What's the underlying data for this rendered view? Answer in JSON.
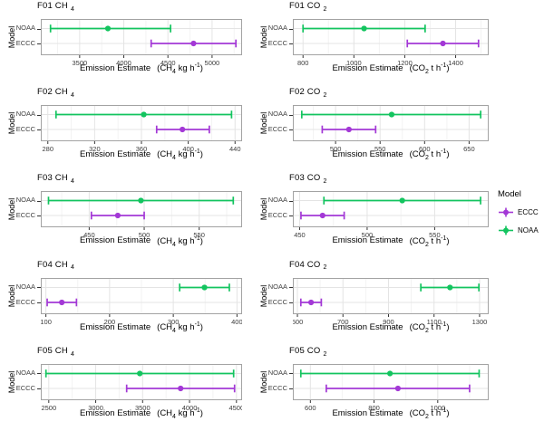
{
  "figure": {
    "background": "#ffffff"
  },
  "colors": {
    "eccc": "#a338d6",
    "noaa": "#13c45f",
    "grid_major": "#e4e4e4",
    "grid_minor": "#f3f3f3",
    "panel_border": "#a3a3a3",
    "tick": "#333333",
    "tick_label": "#3c3c3c"
  },
  "legend": {
    "title": "Model",
    "items": [
      {
        "label": "ECCC",
        "color_key": "eccc"
      },
      {
        "label": "NOAA",
        "color_key": "noaa"
      }
    ]
  },
  "chart_data": [
    {
      "id": "f01-ch4",
      "type": "pointrange",
      "title": "F01 CH",
      "title_sub": "4",
      "ylabel": "Model",
      "categories": [
        "NOAA",
        "ECCC"
      ],
      "xlabel": "Emission Estimate",
      "unit_pre": "(CH",
      "unit_sub": "4",
      "unit_mid": " kg h",
      "unit_sup": "-1",
      "unit_post": ")",
      "xlim": [
        3060,
        5340
      ],
      "ticks": [
        3500,
        4000,
        4500,
        5000
      ],
      "series": [
        {
          "name": "NOAA",
          "color_key": "noaa",
          "center": 3820,
          "low": 3170,
          "high": 4530
        },
        {
          "name": "ECCC",
          "color_key": "eccc",
          "center": 4790,
          "low": 4310,
          "high": 5270
        }
      ]
    },
    {
      "id": "f01-co2",
      "type": "pointrange",
      "title": "F01 CO",
      "title_sub": "2",
      "ylabel": "Model",
      "categories": [
        "NOAA",
        "ECCC"
      ],
      "xlabel": "Emission Estimate",
      "unit_pre": "(CO",
      "unit_sub": "2",
      "unit_mid": " t h",
      "unit_sup": "-1",
      "unit_post": ")",
      "xlim": [
        760,
        1530
      ],
      "ticks": [
        800,
        1000,
        1200,
        1400
      ],
      "series": [
        {
          "name": "NOAA",
          "color_key": "noaa",
          "center": 1040,
          "low": 800,
          "high": 1280
        },
        {
          "name": "ECCC",
          "color_key": "eccc",
          "center": 1350,
          "low": 1210,
          "high": 1490
        }
      ]
    },
    {
      "id": "f02-ch4",
      "type": "pointrange",
      "title": "F02 CH",
      "title_sub": "4",
      "ylabel": "Model",
      "categories": [
        "NOAA",
        "ECCC"
      ],
      "xlabel": "Emission Estimate",
      "unit_pre": "(CH",
      "unit_sub": "4",
      "unit_mid": " kg h",
      "unit_sup": "-1",
      "unit_post": ")",
      "xlim": [
        274,
        446
      ],
      "ticks": [
        280,
        320,
        360,
        400,
        440
      ],
      "series": [
        {
          "name": "NOAA",
          "color_key": "noaa",
          "center": 362,
          "low": 287,
          "high": 437
        },
        {
          "name": "ECCC",
          "color_key": "eccc",
          "center": 395,
          "low": 373,
          "high": 418
        }
      ]
    },
    {
      "id": "f02-co2",
      "type": "pointrange",
      "title": "F02 CO",
      "title_sub": "2",
      "ylabel": "Model",
      "categories": [
        "NOAA",
        "ECCC"
      ],
      "xlabel": "Emission Estimate",
      "unit_pre": "(CO",
      "unit_sub": "2",
      "unit_mid": " t h",
      "unit_sup": "-1",
      "unit_post": ")",
      "xlim": [
        452,
        672
      ],
      "ticks": [
        500,
        550,
        600,
        650
      ],
      "series": [
        {
          "name": "NOAA",
          "color_key": "noaa",
          "center": 563,
          "low": 462,
          "high": 663
        },
        {
          "name": "ECCC",
          "color_key": "eccc",
          "center": 515,
          "low": 485,
          "high": 545
        }
      ]
    },
    {
      "id": "f03-ch4",
      "type": "pointrange",
      "title": "F03 CH",
      "title_sub": "4",
      "ylabel": "Model",
      "categories": [
        "NOAA",
        "ECCC"
      ],
      "xlabel": "Emission Estimate",
      "unit_pre": "(CH",
      "unit_sub": "4",
      "unit_mid": " kg h",
      "unit_sup": "-1",
      "unit_post": ")",
      "xlim": [
        406,
        589
      ],
      "ticks": [
        450,
        500,
        550
      ],
      "series": [
        {
          "name": "NOAA",
          "color_key": "noaa",
          "center": 497,
          "low": 413,
          "high": 581
        },
        {
          "name": "ECCC",
          "color_key": "eccc",
          "center": 476,
          "low": 452,
          "high": 500
        }
      ]
    },
    {
      "id": "f03-co2",
      "type": "pointrange",
      "title": "F03 CO",
      "title_sub": "2",
      "ylabel": "Model",
      "categories": [
        "NOAA",
        "ECCC"
      ],
      "xlabel": "Emission Estimate",
      "unit_pre": "(CO",
      "unit_sub": "2",
      "unit_mid": " t h",
      "unit_sup": "-1",
      "unit_post": ")",
      "xlim": [
        445,
        590
      ],
      "ticks": [
        450,
        500,
        550
      ],
      "series": [
        {
          "name": "NOAA",
          "color_key": "noaa",
          "center": 526,
          "low": 468,
          "high": 584
        },
        {
          "name": "ECCC",
          "color_key": "eccc",
          "center": 467,
          "low": 451,
          "high": 483
        }
      ]
    },
    {
      "id": "f04-ch4",
      "type": "pointrange",
      "title": "F04 CH",
      "title_sub": "4",
      "ylabel": "Model",
      "categories": [
        "NOAA",
        "ECCC"
      ],
      "xlabel": "Emission Estimate",
      "unit_pre": "(CH",
      "unit_sub": "4",
      "unit_mid": " kg h",
      "unit_sup": "-1",
      "unit_post": ")",
      "xlim": [
        92,
        408
      ],
      "ticks": [
        100,
        200,
        300,
        400
      ],
      "series": [
        {
          "name": "NOAA",
          "color_key": "noaa",
          "center": 349,
          "low": 310,
          "high": 388
        },
        {
          "name": "ECCC",
          "color_key": "eccc",
          "center": 125,
          "low": 102,
          "high": 148
        }
      ]
    },
    {
      "id": "f04-co2",
      "type": "pointrange",
      "title": "F04 CO",
      "title_sub": "2",
      "ylabel": "Model",
      "categories": [
        "NOAA",
        "ECCC"
      ],
      "xlabel": "Emission Estimate",
      "unit_pre": "(CO",
      "unit_sub": "2",
      "unit_mid": " t h",
      "unit_sup": "-1",
      "unit_post": ")",
      "xlim": [
        480,
        1340
      ],
      "ticks": [
        500,
        700,
        900,
        1100,
        1300
      ],
      "series": [
        {
          "name": "NOAA",
          "color_key": "noaa",
          "center": 1170,
          "low": 1042,
          "high": 1297
        },
        {
          "name": "ECCC",
          "color_key": "eccc",
          "center": 560,
          "low": 515,
          "high": 605
        }
      ]
    },
    {
      "id": "f05-ch4",
      "type": "pointrange",
      "title": "F05 CH",
      "title_sub": "4",
      "ylabel": "Model",
      "categories": [
        "NOAA",
        "ECCC"
      ],
      "xlabel": "Emission Estimate",
      "unit_pre": "(CH",
      "unit_sub": "4",
      "unit_mid": " kg h",
      "unit_sup": "-1",
      "unit_post": ")",
      "xlim": [
        2415,
        4560
      ],
      "ticks": [
        2500,
        3000,
        3500,
        4000,
        4500
      ],
      "series": [
        {
          "name": "NOAA",
          "color_key": "noaa",
          "center": 3470,
          "low": 2470,
          "high": 4470
        },
        {
          "name": "ECCC",
          "color_key": "eccc",
          "center": 3905,
          "low": 3330,
          "high": 4480
        }
      ]
    },
    {
      "id": "f05-co2",
      "type": "pointrange",
      "title": "F05 CO",
      "title_sub": "2",
      "ylabel": "Model",
      "categories": [
        "NOAA",
        "ECCC"
      ],
      "xlabel": "Emission Estimate",
      "unit_pre": "(CO",
      "unit_sub": "2",
      "unit_mid": " t h",
      "unit_sup": "-1",
      "unit_post": ")",
      "xlim": [
        545,
        1160
      ],
      "ticks": [
        600,
        800,
        1000
      ],
      "series": [
        {
          "name": "NOAA",
          "color_key": "noaa",
          "center": 850,
          "low": 570,
          "high": 1130
        },
        {
          "name": "ECCC",
          "color_key": "eccc",
          "center": 875,
          "low": 650,
          "high": 1100
        }
      ]
    }
  ]
}
